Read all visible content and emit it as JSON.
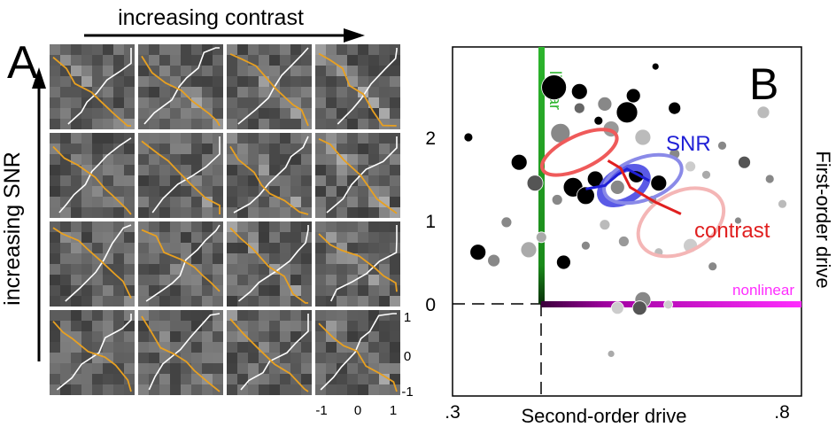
{
  "panel_a": {
    "letter": "A",
    "x_arrow_label": "increasing contrast",
    "y_arrow_label": "increasing SNR",
    "tick_right": [
      "1",
      "0",
      "-1"
    ],
    "tick_bottom": [
      "-1",
      "0",
      "1"
    ],
    "line_colors": {
      "white": "#ffffff",
      "orange": "#e8a020"
    },
    "grid": {
      "rows": 4,
      "cols": 4
    }
  },
  "panel_b": {
    "letter": "B",
    "xlabel": "Second-order drive",
    "ylabel": "First-order drive",
    "x_ticks": [
      ".3",
      ".8"
    ],
    "y_ticks": [
      "2",
      "1",
      "0"
    ],
    "labels": {
      "linear": "linear",
      "nonlinear": "nonlinear",
      "snr": "SNR",
      "contrast": "contrast"
    },
    "colors": {
      "linear": "#2db52d",
      "nonlinear": "#ff2dff",
      "snr": "#1f1fd6",
      "contrast": "#e01f1f",
      "snr_ellipse": "#6f6fe6",
      "contrast_ellipse": "#f4b6b6",
      "red_ellipse": "#ef5a5a"
    }
  },
  "chart_data": {
    "type": "scatter",
    "title": "",
    "xlabel": "Second-order drive",
    "ylabel": "First-order drive",
    "xlim": [
      -0.3,
      0.8
    ],
    "ylim": [
      -0.8,
      3.0
    ],
    "grid": false,
    "points": [
      {
        "x": 0.02,
        "y": 2.6,
        "s": 14,
        "c": "#000000"
      },
      {
        "x": 0.1,
        "y": 2.55,
        "s": 9,
        "c": "#000000"
      },
      {
        "x": 0.18,
        "y": 2.4,
        "s": 8,
        "c": "#888888"
      },
      {
        "x": 0.25,
        "y": 2.3,
        "s": 12,
        "c": "#000000"
      },
      {
        "x": 0.27,
        "y": 2.5,
        "s": 8,
        "c": "#000000"
      },
      {
        "x": 0.34,
        "y": 2.85,
        "s": 4,
        "c": "#000000"
      },
      {
        "x": 0.4,
        "y": 2.35,
        "s": 7,
        "c": "#000000"
      },
      {
        "x": 0.04,
        "y": 2.05,
        "s": 11,
        "c": "#888888"
      },
      {
        "x": 0.2,
        "y": 2.1,
        "s": 9,
        "c": "#999999"
      },
      {
        "x": 0.3,
        "y": 2.0,
        "s": 9,
        "c": "#bbbbbb"
      },
      {
        "x": 0.1,
        "y": 2.35,
        "s": 6,
        "c": "#666666"
      },
      {
        "x": 0.16,
        "y": 2.2,
        "s": 5,
        "c": "#000000"
      },
      {
        "x": -0.25,
        "y": 2.0,
        "s": 5,
        "c": "#000000"
      },
      {
        "x": -0.09,
        "y": 1.7,
        "s": 9,
        "c": "#000000"
      },
      {
        "x": -0.04,
        "y": 1.45,
        "s": 9,
        "c": "#555555"
      },
      {
        "x": 0.03,
        "y": 1.25,
        "s": 6,
        "c": "#888888"
      },
      {
        "x": 0.08,
        "y": 1.4,
        "s": 11,
        "c": "#000000"
      },
      {
        "x": 0.12,
        "y": 1.3,
        "s": 10,
        "c": "#000000"
      },
      {
        "x": 0.15,
        "y": 1.5,
        "s": 9,
        "c": "#000000"
      },
      {
        "x": 0.22,
        "y": 1.4,
        "s": 8,
        "c": "#888888"
      },
      {
        "x": 0.28,
        "y": 1.55,
        "s": 9,
        "c": "#000000"
      },
      {
        "x": 0.35,
        "y": 1.45,
        "s": 9,
        "c": "#000000"
      },
      {
        "x": 0.4,
        "y": 1.8,
        "s": 6,
        "c": "#888888"
      },
      {
        "x": 0.45,
        "y": 1.65,
        "s": 6,
        "c": "#cccccc"
      },
      {
        "x": 0.5,
        "y": 1.55,
        "s": 5,
        "c": "#aaaaaa"
      },
      {
        "x": 0.55,
        "y": 1.9,
        "s": 5,
        "c": "#888888"
      },
      {
        "x": 0.62,
        "y": 1.7,
        "s": 7,
        "c": "#555555"
      },
      {
        "x": 0.7,
        "y": 1.5,
        "s": 5,
        "c": "#888888"
      },
      {
        "x": 0.74,
        "y": 1.2,
        "s": 5,
        "c": "#bbbbbb"
      },
      {
        "x": 0.68,
        "y": 2.3,
        "s": 7,
        "c": "#bbbbbb"
      },
      {
        "x": 0.6,
        "y": 1.0,
        "s": 4,
        "c": "#888888"
      },
      {
        "x": 0.33,
        "y": 1.25,
        "s": 5,
        "c": "#999999"
      },
      {
        "x": -0.22,
        "y": 0.62,
        "s": 9,
        "c": "#000000"
      },
      {
        "x": -0.17,
        "y": 0.52,
        "s": 7,
        "c": "#888888"
      },
      {
        "x": -0.13,
        "y": 0.98,
        "s": 6,
        "c": "#888888"
      },
      {
        "x": -0.06,
        "y": 0.65,
        "s": 9,
        "c": "#aaaaaa"
      },
      {
        "x": -0.02,
        "y": 0.8,
        "s": 6,
        "c": "#aaaaaa"
      },
      {
        "x": 0.05,
        "y": 0.5,
        "s": 8,
        "c": "#000000"
      },
      {
        "x": 0.12,
        "y": 0.7,
        "s": 5,
        "c": "#888888"
      },
      {
        "x": 0.18,
        "y": 0.95,
        "s": 6,
        "c": "#bbbbbb"
      },
      {
        "x": 0.24,
        "y": 0.75,
        "s": 6,
        "c": "#999999"
      },
      {
        "x": 0.35,
        "y": 0.62,
        "s": 5,
        "c": "#bbbbbb"
      },
      {
        "x": 0.45,
        "y": 0.7,
        "s": 8,
        "c": "#cccccc"
      },
      {
        "x": 0.52,
        "y": 0.45,
        "s": 5,
        "c": "#888888"
      },
      {
        "x": 0.3,
        "y": 0.05,
        "s": 9,
        "c": "#888888"
      },
      {
        "x": 0.29,
        "y": -0.05,
        "s": 8,
        "c": "#555555"
      },
      {
        "x": 0.38,
        "y": -0.01,
        "s": 5,
        "c": "#cccccc"
      },
      {
        "x": 0.22,
        "y": -0.05,
        "s": 7,
        "c": "#cccccc"
      },
      {
        "x": 0.2,
        "y": -0.6,
        "s": 4,
        "c": "#aaaaaa"
      }
    ],
    "snr_line": [
      [
        0.12,
        1.38
      ],
      [
        0.18,
        1.42
      ],
      [
        0.22,
        1.55
      ],
      [
        0.25,
        1.62
      ],
      [
        0.32,
        1.48
      ]
    ],
    "contrast_line": [
      [
        0.19,
        1.72
      ],
      [
        0.23,
        1.63
      ],
      [
        0.26,
        1.4
      ],
      [
        0.34,
        1.22
      ],
      [
        0.42,
        1.08
      ]
    ],
    "ellipses": [
      {
        "cx": 0.24,
        "cy": 1.42,
        "rx": 0.05,
        "ry": 0.2,
        "c": "#5a5ae6"
      },
      {
        "cx": 0.3,
        "cy": 1.5,
        "rx": 0.08,
        "ry": 0.28,
        "c": "#8a8ae8"
      },
      {
        "cx": 0.1,
        "cy": 1.82,
        "rx": 0.08,
        "ry": 0.22,
        "c": "#ef5a5a"
      },
      {
        "cx": 0.42,
        "cy": 0.98,
        "rx": 0.09,
        "ry": 0.4,
        "c": "#f4b6b6"
      }
    ]
  }
}
